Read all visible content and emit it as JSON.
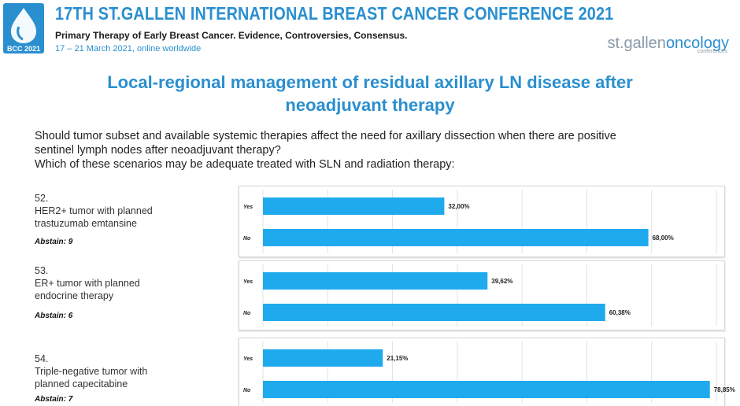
{
  "header": {
    "logo_text": "BCC 2021",
    "conference_title": "17TH ST.GALLEN INTERNATIONAL BREAST CANCER CONFERENCE 2021",
    "subtitle": "Primary Therapy of Early Breast Cancer. Evidence, Controversies, Consensus.",
    "date_line": "17 – 21 March 2021, online worldwide",
    "brand_part1": "st.gallen",
    "brand_part2": "oncology",
    "brand_sub": "conferences"
  },
  "slide": {
    "title_line1": "Local-regional management of residual axillary LN disease after",
    "title_line2": "neoadjuvant therapy",
    "question_line1": "Should tumor subset and available systemic therapies affect the need for axillary dissection when there are positive",
    "question_line2": "sentinel lymph nodes after neoadjuvant therapy?",
    "question_line3": "Which of these scenarios may be adequate treated with SLN and radiation therapy:"
  },
  "questions": [
    {
      "number": "52.",
      "line1": "HER2+ tumor with planned",
      "line2": "trastuzumab emtansine",
      "abstain": "Abstain: 9"
    },
    {
      "number": "53.",
      "line1": "ER+ tumor with planned",
      "line2": "endocrine therapy",
      "abstain": "Abstain: 6"
    },
    {
      "number": "54.",
      "line1": "Triple-negative tumor with",
      "line2": "planned capecitabine",
      "abstain": "Abstain: 7"
    }
  ],
  "chart_data": [
    {
      "type": "bar",
      "orientation": "horizontal",
      "categories": [
        "Yes",
        "No"
      ],
      "values": [
        32.0,
        68.0
      ],
      "value_labels": [
        "32,00%",
        "68,00%"
      ],
      "xlim": [
        0,
        80
      ],
      "grid": true
    },
    {
      "type": "bar",
      "orientation": "horizontal",
      "categories": [
        "Yes",
        "No"
      ],
      "values": [
        39.62,
        60.38
      ],
      "value_labels": [
        "39,62%",
        "60,38%"
      ],
      "xlim": [
        0,
        80
      ],
      "grid": true
    },
    {
      "type": "bar",
      "orientation": "horizontal",
      "categories": [
        "Yes",
        "No"
      ],
      "values": [
        21.15,
        78.85
      ],
      "value_labels": [
        "21,15%",
        "78,85%"
      ],
      "xlim": [
        0,
        80
      ],
      "grid": true
    }
  ],
  "colors": {
    "accent": "#2a8fcf",
    "bar": "#1faaee",
    "grid": "#e2e2e2"
  }
}
